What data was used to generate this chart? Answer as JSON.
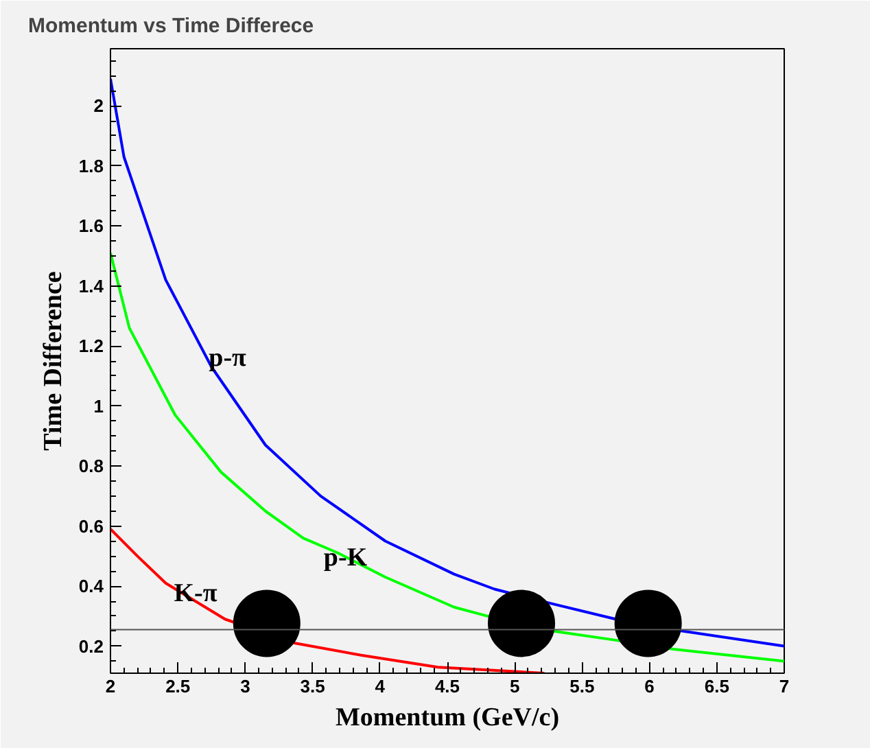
{
  "chart_data": {
    "type": "line",
    "title": "Momentum vs Time Differece",
    "xlabel": "Momentum (GeV/c)",
    "ylabel": "Time Difference",
    "xlim": [
      2,
      7
    ],
    "ylim": [
      0.11,
      2.19
    ],
    "xticks": [
      2,
      2.5,
      3,
      3.5,
      4,
      4.5,
      5,
      5.5,
      6,
      6.5,
      7
    ],
    "yticks": [
      0.2,
      0.4,
      0.6,
      0.8,
      1,
      1.2,
      1.4,
      1.6,
      1.8,
      2
    ],
    "grid": false,
    "series": [
      {
        "name": "p-π",
        "color": "#0000ff",
        "x": [
          2,
          2.1,
          2.41,
          2.75,
          3.15,
          3.56,
          4.04,
          4.55,
          4.85,
          5.29,
          5.75,
          6.25,
          7
        ],
        "values": [
          2.09,
          1.83,
          1.42,
          1.13,
          0.87,
          0.7,
          0.55,
          0.44,
          0.39,
          0.34,
          0.29,
          0.25,
          0.2
        ]
      },
      {
        "name": "p-K",
        "color": "#00ff00",
        "x": [
          2,
          2.14,
          2.48,
          2.82,
          3.15,
          3.43,
          3.69,
          4.04,
          4.55,
          4.8,
          5.29,
          5.75,
          6.18,
          7
        ],
        "values": [
          1.51,
          1.26,
          0.97,
          0.78,
          0.65,
          0.56,
          0.51,
          0.43,
          0.33,
          0.3,
          0.25,
          0.22,
          0.19,
          0.15
        ]
      },
      {
        "name": "K-π",
        "color": "#ff0000",
        "x": [
          2,
          2.2,
          2.41,
          2.85,
          3.37,
          3.86,
          4.43,
          5.22
        ],
        "values": [
          0.59,
          0.5,
          0.41,
          0.29,
          0.21,
          0.17,
          0.13,
          0.11
        ]
      },
      {
        "type": "scatter",
        "color": "#000000",
        "marker": "circle",
        "x": [
          3.16,
          5.05,
          5.99
        ],
        "values": [
          0.276,
          0.276,
          0.276
        ]
      }
    ],
    "ref_lines": [
      {
        "axis": "y",
        "value": 0.255,
        "color": "#555555"
      }
    ]
  }
}
